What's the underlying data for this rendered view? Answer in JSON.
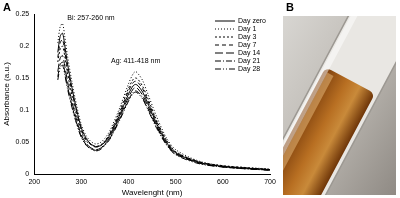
{
  "chart_data": {
    "type": "line",
    "panel_label": "A",
    "x_label": "Wavelenght (nm)",
    "y_label": "Absorbance (a.u.)",
    "annotations": [
      "Bi: 257-260 nm",
      "Ag: 411-418 nm"
    ],
    "x": [
      250,
      255,
      260,
      265,
      270,
      280,
      290,
      300,
      310,
      320,
      330,
      340,
      350,
      360,
      380,
      400,
      410,
      415,
      420,
      430,
      440,
      460,
      480,
      500,
      550,
      600,
      650,
      700
    ],
    "series": [
      {
        "name": "Day zero",
        "color": "#000000",
        "line_style": "solid",
        "values": [
          0.19,
          0.215,
          0.22,
          0.2,
          0.175,
          0.135,
          0.1,
          0.072,
          0.056,
          0.047,
          0.043,
          0.044,
          0.05,
          0.06,
          0.09,
          0.125,
          0.138,
          0.14,
          0.138,
          0.128,
          0.112,
          0.078,
          0.05,
          0.033,
          0.018,
          0.012,
          0.009,
          0.007
        ]
      },
      {
        "name": "Day 1",
        "color": "#000000",
        "line_style": "dotted",
        "values": [
          0.205,
          0.23,
          0.235,
          0.214,
          0.187,
          0.144,
          0.107,
          0.077,
          0.06,
          0.051,
          0.047,
          0.049,
          0.056,
          0.067,
          0.101,
          0.141,
          0.157,
          0.16,
          0.157,
          0.146,
          0.127,
          0.089,
          0.057,
          0.038,
          0.02,
          0.013,
          0.01,
          0.008
        ]
      },
      {
        "name": "Day 3",
        "color": "#000000",
        "line_style": "short-dash",
        "values": [
          0.175,
          0.195,
          0.2,
          0.183,
          0.16,
          0.123,
          0.091,
          0.066,
          0.052,
          0.046,
          0.043,
          0.045,
          0.052,
          0.063,
          0.096,
          0.134,
          0.148,
          0.15,
          0.148,
          0.137,
          0.12,
          0.083,
          0.054,
          0.035,
          0.019,
          0.013,
          0.01,
          0.007
        ]
      },
      {
        "name": "Day 7",
        "color": "#000000",
        "line_style": "dashed",
        "values": [
          0.182,
          0.205,
          0.21,
          0.191,
          0.167,
          0.129,
          0.096,
          0.069,
          0.054,
          0.046,
          0.042,
          0.044,
          0.051,
          0.062,
          0.093,
          0.13,
          0.143,
          0.145,
          0.143,
          0.133,
          0.116,
          0.081,
          0.052,
          0.034,
          0.019,
          0.012,
          0.009,
          0.007
        ]
      },
      {
        "name": "Day 14",
        "color": "#000000",
        "line_style": "long-dash",
        "values": [
          0.16,
          0.181,
          0.185,
          0.168,
          0.147,
          0.113,
          0.084,
          0.061,
          0.048,
          0.041,
          0.038,
          0.04,
          0.047,
          0.057,
          0.087,
          0.12,
          0.133,
          0.135,
          0.133,
          0.123,
          0.108,
          0.075,
          0.048,
          0.032,
          0.017,
          0.011,
          0.009,
          0.006
        ]
      },
      {
        "name": "Day 21",
        "color": "#000000",
        "line_style": "dash-dot",
        "values": [
          0.152,
          0.171,
          0.175,
          0.159,
          0.139,
          0.107,
          0.08,
          0.058,
          0.046,
          0.04,
          0.037,
          0.039,
          0.046,
          0.055,
          0.084,
          0.116,
          0.128,
          0.13,
          0.128,
          0.119,
          0.104,
          0.073,
          0.047,
          0.031,
          0.017,
          0.011,
          0.008,
          0.006
        ]
      },
      {
        "name": "Day 28",
        "color": "#000000",
        "line_style": "dash-dot-dot",
        "values": [
          0.147,
          0.166,
          0.17,
          0.155,
          0.135,
          0.104,
          0.078,
          0.057,
          0.045,
          0.039,
          0.036,
          0.038,
          0.045,
          0.054,
          0.082,
          0.114,
          0.126,
          0.128,
          0.126,
          0.117,
          0.102,
          0.071,
          0.046,
          0.03,
          0.016,
          0.011,
          0.008,
          0.006
        ]
      }
    ],
    "xlim": [
      200,
      700
    ],
    "xticks": [
      200,
      300,
      400,
      500,
      600,
      700
    ],
    "ylim": [
      0,
      0.25
    ],
    "yticks": [
      0,
      0.05,
      0.1,
      0.15,
      0.2,
      0.25
    ],
    "grid": false,
    "legend": "upper right",
    "marker": "none"
  },
  "photo": {
    "label": "B"
  }
}
